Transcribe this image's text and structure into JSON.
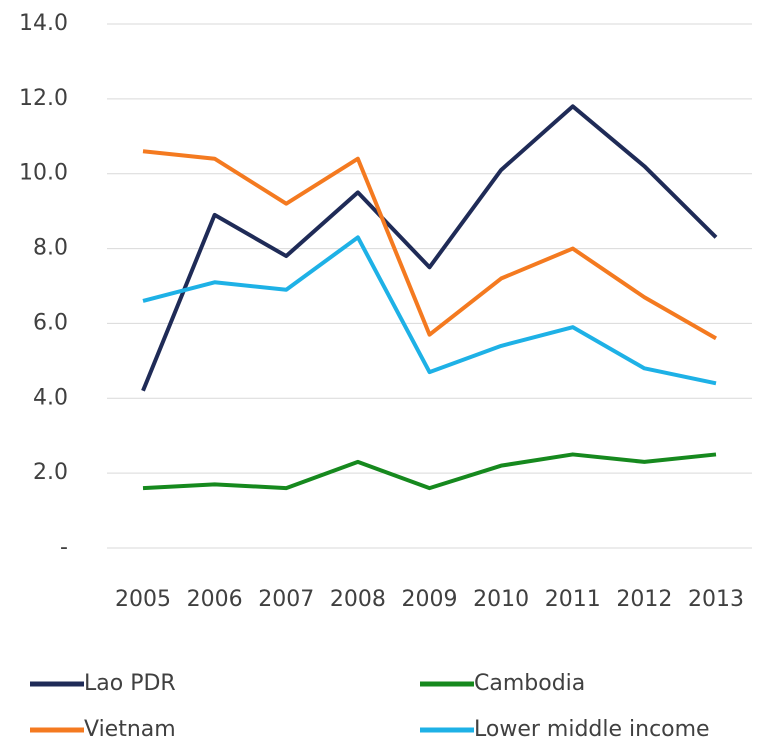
{
  "chart_data": {
    "type": "line",
    "x": [
      2005,
      2006,
      2007,
      2008,
      2009,
      2010,
      2011,
      2012,
      2013
    ],
    "series": [
      {
        "name": "Lao PDR",
        "color": "#1f2b57",
        "values": [
          4.2,
          8.9,
          7.8,
          9.5,
          7.5,
          10.1,
          11.8,
          10.2,
          8.3
        ]
      },
      {
        "name": "Cambodia",
        "color": "#16891e",
        "values": [
          1.6,
          1.7,
          1.6,
          2.3,
          1.6,
          2.2,
          2.5,
          2.3,
          2.5
        ]
      },
      {
        "name": "Vietnam",
        "color": "#f47a20",
        "values": [
          10.6,
          10.4,
          9.2,
          10.4,
          5.7,
          7.2,
          8.0,
          6.7,
          5.6
        ]
      },
      {
        "name": "Lower middle income",
        "color": "#1eb1e6",
        "values": [
          6.6,
          7.1,
          6.9,
          8.3,
          4.7,
          5.4,
          5.9,
          4.8,
          4.4
        ]
      }
    ],
    "xlim": [
      2005,
      2013
    ],
    "ylim": [
      0,
      14
    ],
    "yticks": [
      {
        "value": 0,
        "label": "-"
      },
      {
        "value": 2,
        "label": "2.0"
      },
      {
        "value": 4,
        "label": "4.0"
      },
      {
        "value": 6,
        "label": "6.0"
      },
      {
        "value": 8,
        "label": "8.0"
      },
      {
        "value": 10,
        "label": "10.0"
      },
      {
        "value": 12,
        "label": "12.0"
      },
      {
        "value": 14,
        "label": "14.0"
      }
    ],
    "grid": true,
    "legend": "bottom"
  }
}
